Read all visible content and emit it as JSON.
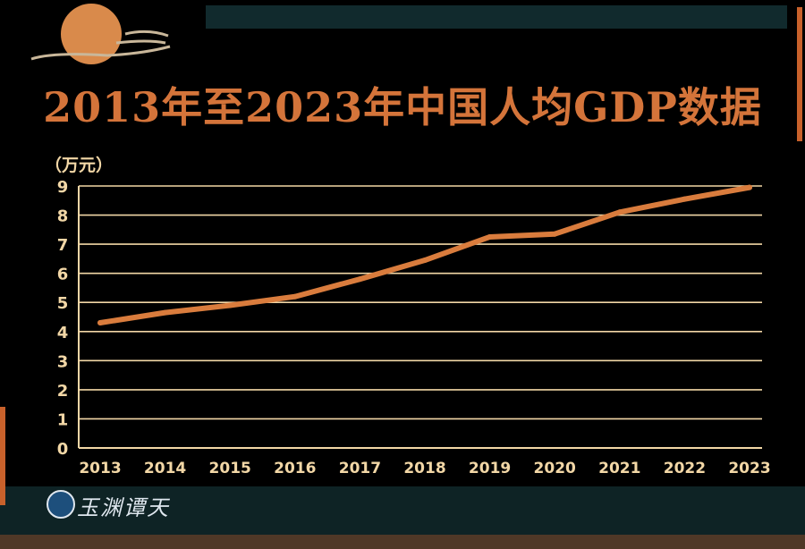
{
  "title": "2013年至2023年中国人均GDP数据",
  "brand": {
    "text": "玉渊谭天"
  },
  "colors": {
    "line": "#d97c3d",
    "title": "#d4743a",
    "grid": "#f2d7a6",
    "background": "#000000"
  },
  "chart_data": {
    "type": "line",
    "title": "2013年至2023年中国人均GDP数据",
    "ylabel": "（万元）",
    "xlabel": "",
    "categories": [
      "2013",
      "2014",
      "2015",
      "2016",
      "2017",
      "2018",
      "2019",
      "2020",
      "2021",
      "2022",
      "2023"
    ],
    "values": [
      4.3,
      4.65,
      4.9,
      5.2,
      5.8,
      6.45,
      7.25,
      7.35,
      8.1,
      8.55,
      8.95
    ],
    "ylim": [
      0,
      9
    ],
    "yticks": [
      0,
      1,
      2,
      3,
      4,
      5,
      6,
      7,
      8,
      9
    ],
    "grid": true,
    "legend": "none"
  }
}
